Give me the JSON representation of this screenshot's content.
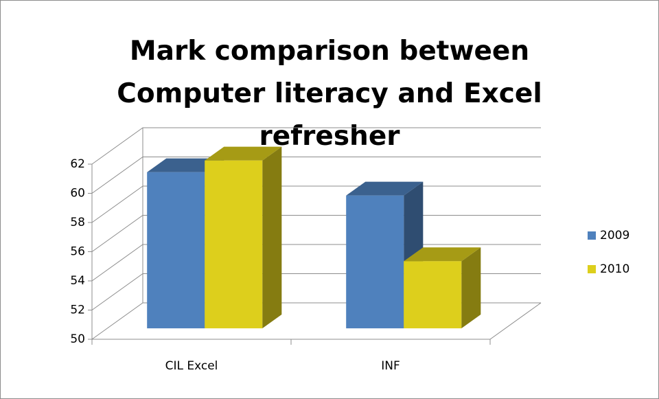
{
  "chart_data": {
    "type": "bar3d",
    "title": "Mark comparison between Computer literacy and Excel refresher",
    "categories": [
      "CIL Excel",
      "INF"
    ],
    "series": [
      {
        "name": "2009",
        "color": "#4f81bd",
        "values": [
          60.7,
          59.1
        ]
      },
      {
        "name": "2010",
        "color": "#ddcf1c",
        "values": [
          61.5,
          54.6
        ]
      }
    ],
    "ylim": [
      50,
      62
    ],
    "yticks": [
      50,
      52,
      54,
      56,
      58,
      60,
      62
    ],
    "grid": true,
    "legend": "right"
  }
}
